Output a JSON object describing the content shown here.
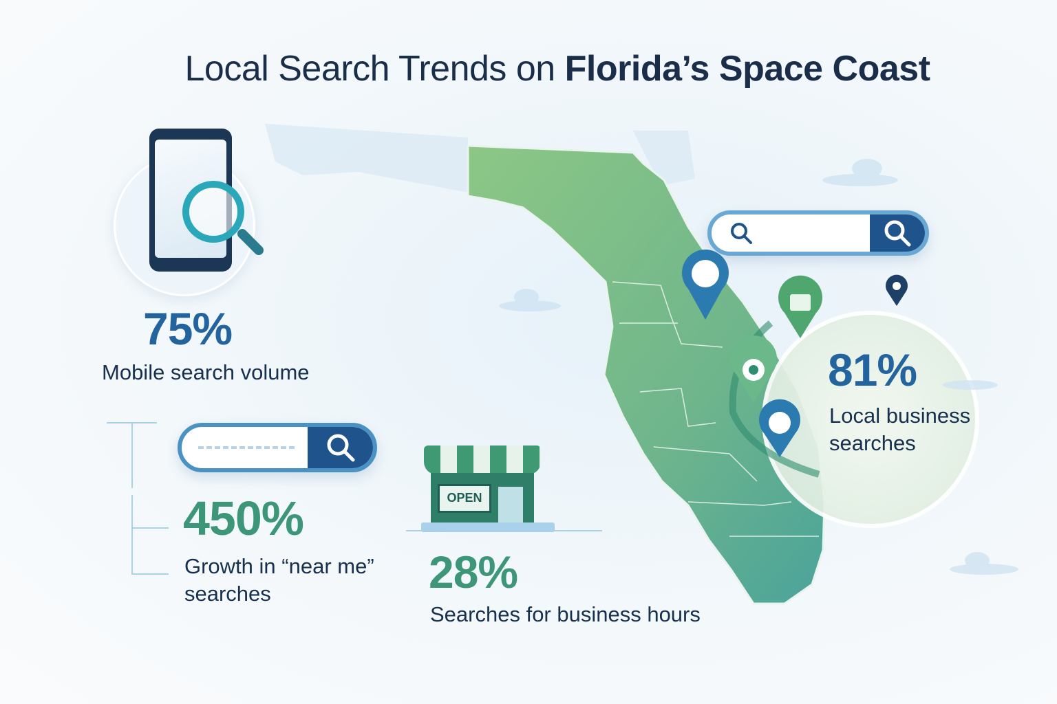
{
  "title": {
    "regular": "Local Search Trends on ",
    "bold": "Florida’s Space Coast"
  },
  "stats": [
    {
      "value": "75%",
      "label": "Mobile search volume",
      "color": "#23649f",
      "icon": "smartphone-magnifier-icon"
    },
    {
      "value": "450%",
      "label_line1": "Growth in “near me”",
      "label_line2": "searches",
      "color": "#3c9677",
      "icon": "search-bar-icon"
    },
    {
      "value": "28%",
      "label": "Searches for business hours",
      "color": "#3c9677",
      "icon": "storefront-open-icon",
      "sign": "OPEN"
    },
    {
      "value": "81%",
      "label_line1": "Local business",
      "label_line2": "searches",
      "color": "#23649f",
      "icon": "map-pins-icon"
    }
  ],
  "colors": {
    "navy": "#1f538c",
    "blue": "#4b92c4",
    "green": "#3c9677",
    "map_green": "#7dbd8a",
    "title": "#1a2e4a"
  }
}
